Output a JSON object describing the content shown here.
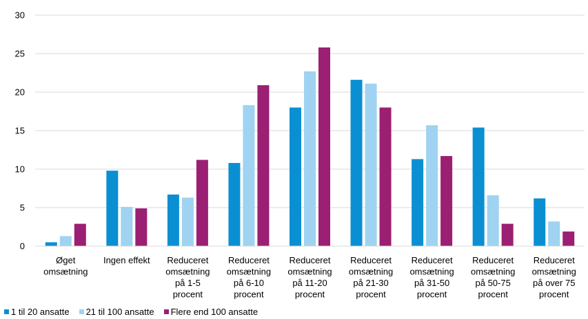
{
  "chart_data": {
    "type": "bar",
    "title": "",
    "xlabel": "",
    "ylabel": "",
    "ylim": [
      0,
      30
    ],
    "yticks": [
      0,
      5,
      10,
      15,
      20,
      25,
      30
    ],
    "grid": true,
    "legend_position": "bottom-left",
    "categories": [
      [
        "Øget",
        "omsætning"
      ],
      [
        "Ingen effekt"
      ],
      [
        "Reduceret",
        "omsætning",
        "på 1-5",
        "procent"
      ],
      [
        "Reduceret",
        "omsætning",
        "på 6-10",
        "procent"
      ],
      [
        "Reduceret",
        "omsætning",
        "på 11-20",
        "procent"
      ],
      [
        "Reduceret",
        "omsætning",
        "på 21-30",
        "procent"
      ],
      [
        "Reduceret",
        "omsætning",
        "på 31-50",
        "procent"
      ],
      [
        "Reduceret",
        "omsætning",
        "på 50-75",
        "procent"
      ],
      [
        "Reduceret",
        "omsætning",
        "på over 75",
        "procent"
      ]
    ],
    "series": [
      {
        "name": "1 til 20 ansatte",
        "color": "#0b8fd3",
        "values": [
          0.5,
          9.8,
          6.7,
          10.8,
          18.0,
          21.6,
          11.3,
          15.4,
          6.2
        ]
      },
      {
        "name": "21 til 100 ansatte",
        "color": "#9fd3f1",
        "values": [
          1.3,
          5.1,
          6.3,
          18.3,
          22.7,
          21.1,
          15.7,
          6.6,
          3.2
        ]
      },
      {
        "name": "Flere end 100 ansatte",
        "color": "#9b1f72",
        "values": [
          2.9,
          4.9,
          11.2,
          20.9,
          25.8,
          18.0,
          11.7,
          2.9,
          1.9
        ]
      }
    ]
  }
}
